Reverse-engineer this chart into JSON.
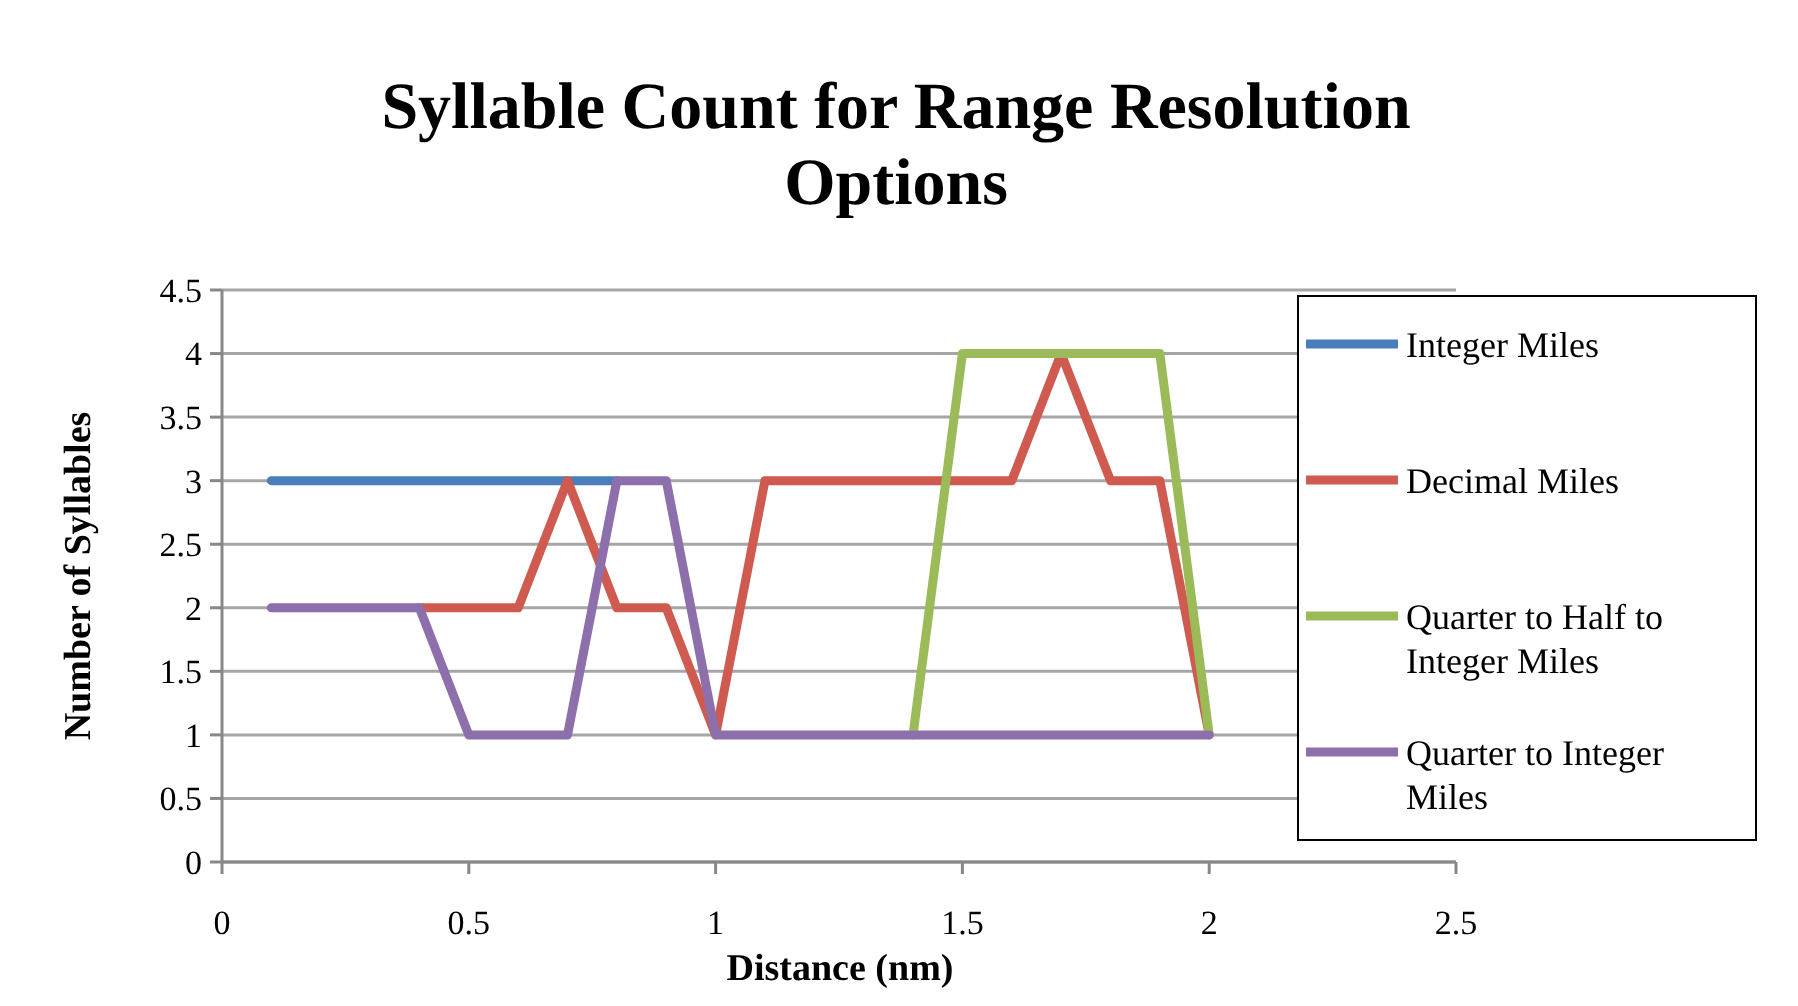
{
  "chart_data": {
    "type": "line",
    "title": "Syllable Count for Range Resolution Options",
    "xlabel": "Distance (nm)",
    "ylabel": "Number of Syllables",
    "x": [
      0.1,
      0.2,
      0.3,
      0.4,
      0.5,
      0.6,
      0.7,
      0.8,
      0.9,
      1.0,
      1.1,
      1.2,
      1.3,
      1.4,
      1.5,
      1.6,
      1.7,
      1.8,
      1.9,
      2.0
    ],
    "series": [
      {
        "name": "Integer Miles",
        "color": "#4a7ebb",
        "values": [
          3,
          3,
          3,
          3,
          3,
          3,
          3,
          3,
          null,
          null,
          null,
          null,
          null,
          null,
          null,
          null,
          null,
          null,
          null,
          null
        ]
      },
      {
        "name": "Decimal Miles",
        "color": "#cf5a4f",
        "values": [
          null,
          null,
          null,
          2,
          2,
          2,
          3,
          2,
          2,
          1,
          3,
          3,
          3,
          3,
          3,
          3,
          4,
          3,
          3,
          1
        ]
      },
      {
        "name": "Quarter to Half to Integer Miles",
        "color": "#9bbb59",
        "values": [
          null,
          null,
          null,
          null,
          null,
          null,
          null,
          null,
          null,
          null,
          null,
          null,
          null,
          1,
          4,
          4,
          4,
          4,
          4,
          1
        ]
      },
      {
        "name": "Quarter to Integer Miles",
        "color": "#8d6fac",
        "values": [
          2,
          2,
          2,
          2,
          1,
          1,
          1,
          3,
          3,
          1,
          1,
          1,
          1,
          1,
          1,
          1,
          1,
          1,
          1,
          1
        ]
      }
    ],
    "xlim": [
      0,
      2.5
    ],
    "xticks": [
      0,
      0.5,
      1,
      1.5,
      2,
      2.5
    ],
    "ylim": [
      0,
      4.5
    ],
    "yticks": [
      0,
      0.5,
      1,
      1.5,
      2,
      2.5,
      3,
      3.5,
      4,
      4.5
    ],
    "grid": "y",
    "legend": "right",
    "marker": "none",
    "line_style": "solid"
  }
}
